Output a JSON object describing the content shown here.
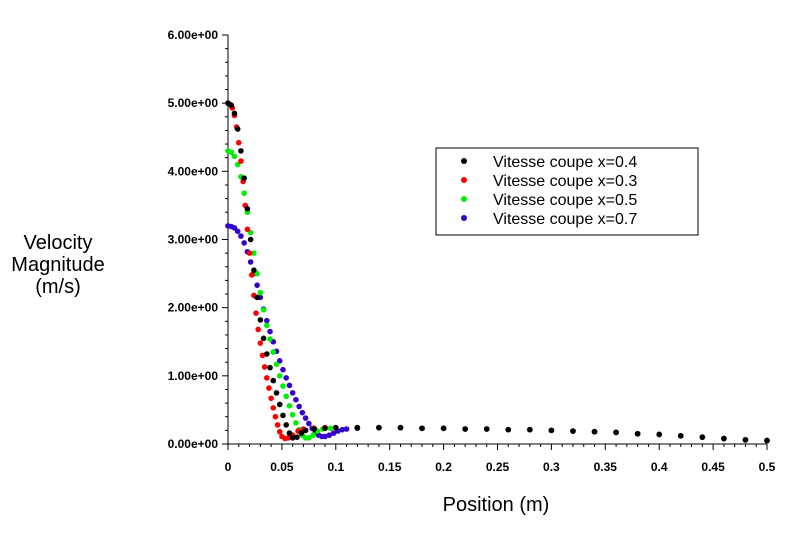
{
  "chart_data": {
    "type": "scatter",
    "title": "",
    "xlabel": "Position (m)",
    "ylabel": [
      "Velocity",
      "Magnitude",
      "(m/s)"
    ],
    "xlim": [
      0,
      0.5
    ],
    "ylim": [
      0,
      6
    ],
    "x_ticks": [
      "0",
      "0.05",
      "0.1",
      "0.15",
      "0.2",
      "0.25",
      "0.3",
      "0.35",
      "0.4",
      "0.45",
      "0.5"
    ],
    "y_ticks": [
      "0.00e+00",
      "1.00e+00",
      "2.00e+00",
      "3.00e+00",
      "4.00e+00",
      "5.00e+00",
      "6.00e+00"
    ],
    "grid": false,
    "legend_position": "right-center",
    "series": [
      {
        "name": "Vitesse coupe x=0.4",
        "color": "#000000",
        "points": [
          [
            0.0,
            5.0
          ],
          [
            0.003,
            4.97
          ],
          [
            0.006,
            4.85
          ],
          [
            0.009,
            4.62
          ],
          [
            0.012,
            4.3
          ],
          [
            0.015,
            3.9
          ],
          [
            0.018,
            3.45
          ],
          [
            0.021,
            3.0
          ],
          [
            0.024,
            2.55
          ],
          [
            0.027,
            2.15
          ],
          [
            0.03,
            1.82
          ],
          [
            0.033,
            1.55
          ],
          [
            0.036,
            1.32
          ],
          [
            0.039,
            1.12
          ],
          [
            0.042,
            0.93
          ],
          [
            0.045,
            0.75
          ],
          [
            0.048,
            0.58
          ],
          [
            0.051,
            0.42
          ],
          [
            0.054,
            0.28
          ],
          [
            0.057,
            0.16
          ],
          [
            0.06,
            0.09
          ],
          [
            0.064,
            0.1
          ],
          [
            0.068,
            0.16
          ],
          [
            0.072,
            0.2
          ],
          [
            0.08,
            0.22
          ],
          [
            0.09,
            0.23
          ],
          [
            0.1,
            0.24
          ],
          [
            0.12,
            0.24
          ],
          [
            0.14,
            0.24
          ],
          [
            0.16,
            0.24
          ],
          [
            0.18,
            0.23
          ],
          [
            0.2,
            0.23
          ],
          [
            0.22,
            0.22
          ],
          [
            0.24,
            0.22
          ],
          [
            0.26,
            0.21
          ],
          [
            0.28,
            0.21
          ],
          [
            0.3,
            0.2
          ],
          [
            0.32,
            0.19
          ],
          [
            0.34,
            0.18
          ],
          [
            0.36,
            0.17
          ],
          [
            0.38,
            0.15
          ],
          [
            0.4,
            0.14
          ],
          [
            0.42,
            0.12
          ],
          [
            0.44,
            0.1
          ],
          [
            0.46,
            0.08
          ],
          [
            0.48,
            0.06
          ],
          [
            0.5,
            0.05
          ]
        ]
      },
      {
        "name": "Vitesse coupe x=0.3",
        "color": "#ff0000",
        "points": [
          [
            0.0,
            5.0
          ],
          [
            0.002,
            4.98
          ],
          [
            0.004,
            4.93
          ],
          [
            0.006,
            4.82
          ],
          [
            0.008,
            4.65
          ],
          [
            0.01,
            4.42
          ],
          [
            0.012,
            4.15
          ],
          [
            0.014,
            3.85
          ],
          [
            0.016,
            3.5
          ],
          [
            0.018,
            3.15
          ],
          [
            0.02,
            2.8
          ],
          [
            0.022,
            2.48
          ],
          [
            0.024,
            2.18
          ],
          [
            0.026,
            1.92
          ],
          [
            0.028,
            1.68
          ],
          [
            0.03,
            1.48
          ],
          [
            0.032,
            1.3
          ],
          [
            0.034,
            1.13
          ],
          [
            0.036,
            0.97
          ],
          [
            0.038,
            0.82
          ],
          [
            0.04,
            0.67
          ],
          [
            0.042,
            0.53
          ],
          [
            0.044,
            0.4
          ],
          [
            0.046,
            0.28
          ],
          [
            0.048,
            0.18
          ],
          [
            0.05,
            0.11
          ],
          [
            0.053,
            0.08
          ],
          [
            0.056,
            0.09
          ],
          [
            0.06,
            0.13
          ],
          [
            0.065,
            0.19
          ],
          [
            0.07,
            0.22
          ],
          [
            0.08,
            0.23
          ],
          [
            0.09,
            0.24
          ],
          [
            0.1,
            0.24
          ],
          [
            0.12,
            0.24
          ],
          [
            0.14,
            0.24
          ],
          [
            0.16,
            0.24
          ],
          [
            0.18,
            0.23
          ],
          [
            0.2,
            0.23
          ],
          [
            0.22,
            0.22
          ],
          [
            0.24,
            0.22
          ],
          [
            0.26,
            0.21
          ],
          [
            0.28,
            0.21
          ],
          [
            0.3,
            0.2
          ],
          [
            0.32,
            0.19
          ],
          [
            0.34,
            0.18
          ],
          [
            0.36,
            0.17
          ],
          [
            0.38,
            0.15
          ],
          [
            0.4,
            0.14
          ],
          [
            0.42,
            0.12
          ],
          [
            0.44,
            0.1
          ],
          [
            0.46,
            0.08
          ],
          [
            0.48,
            0.06
          ],
          [
            0.5,
            0.05
          ]
        ]
      },
      {
        "name": "Vitesse coupe x=0.5",
        "color": "#00ee00",
        "points": [
          [
            0.0,
            4.3
          ],
          [
            0.003,
            4.28
          ],
          [
            0.006,
            4.22
          ],
          [
            0.009,
            4.1
          ],
          [
            0.012,
            3.92
          ],
          [
            0.015,
            3.68
          ],
          [
            0.018,
            3.4
          ],
          [
            0.021,
            3.1
          ],
          [
            0.024,
            2.8
          ],
          [
            0.027,
            2.5
          ],
          [
            0.03,
            2.22
          ],
          [
            0.033,
            1.97
          ],
          [
            0.036,
            1.74
          ],
          [
            0.039,
            1.54
          ],
          [
            0.042,
            1.35
          ],
          [
            0.045,
            1.17
          ],
          [
            0.048,
            1.0
          ],
          [
            0.051,
            0.85
          ],
          [
            0.054,
            0.7
          ],
          [
            0.057,
            0.56
          ],
          [
            0.06,
            0.43
          ],
          [
            0.063,
            0.31
          ],
          [
            0.066,
            0.21
          ],
          [
            0.069,
            0.13
          ],
          [
            0.072,
            0.09
          ],
          [
            0.075,
            0.09
          ],
          [
            0.079,
            0.13
          ],
          [
            0.083,
            0.19
          ],
          [
            0.088,
            0.22
          ],
          [
            0.095,
            0.23
          ],
          [
            0.1,
            0.24
          ],
          [
            0.12,
            0.24
          ],
          [
            0.14,
            0.24
          ],
          [
            0.16,
            0.24
          ],
          [
            0.18,
            0.23
          ],
          [
            0.2,
            0.23
          ],
          [
            0.22,
            0.22
          ],
          [
            0.24,
            0.22
          ],
          [
            0.26,
            0.21
          ],
          [
            0.28,
            0.21
          ],
          [
            0.3,
            0.2
          ],
          [
            0.32,
            0.19
          ],
          [
            0.34,
            0.18
          ],
          [
            0.36,
            0.17
          ],
          [
            0.38,
            0.15
          ],
          [
            0.4,
            0.14
          ],
          [
            0.42,
            0.12
          ],
          [
            0.44,
            0.1
          ],
          [
            0.46,
            0.08
          ],
          [
            0.48,
            0.06
          ],
          [
            0.5,
            0.05
          ]
        ]
      },
      {
        "name": "Vitesse coupe x=0.7",
        "color": "#3300cc",
        "points": [
          [
            0.0,
            3.2
          ],
          [
            0.003,
            3.19
          ],
          [
            0.006,
            3.17
          ],
          [
            0.009,
            3.12
          ],
          [
            0.012,
            3.05
          ],
          [
            0.015,
            2.95
          ],
          [
            0.018,
            2.82
          ],
          [
            0.021,
            2.67
          ],
          [
            0.024,
            2.5
          ],
          [
            0.027,
            2.33
          ],
          [
            0.03,
            2.15
          ],
          [
            0.033,
            1.98
          ],
          [
            0.036,
            1.81
          ],
          [
            0.039,
            1.65
          ],
          [
            0.042,
            1.5
          ],
          [
            0.045,
            1.36
          ],
          [
            0.048,
            1.22
          ],
          [
            0.051,
            1.09
          ],
          [
            0.054,
            0.97
          ],
          [
            0.057,
            0.86
          ],
          [
            0.06,
            0.75
          ],
          [
            0.063,
            0.65
          ],
          [
            0.066,
            0.55
          ],
          [
            0.069,
            0.46
          ],
          [
            0.072,
            0.38
          ],
          [
            0.075,
            0.3
          ],
          [
            0.078,
            0.23
          ],
          [
            0.081,
            0.17
          ],
          [
            0.084,
            0.13
          ],
          [
            0.087,
            0.11
          ],
          [
            0.09,
            0.11
          ],
          [
            0.094,
            0.13
          ],
          [
            0.098,
            0.16
          ],
          [
            0.102,
            0.19
          ],
          [
            0.106,
            0.21
          ],
          [
            0.11,
            0.22
          ],
          [
            0.12,
            0.23
          ],
          [
            0.14,
            0.24
          ],
          [
            0.16,
            0.24
          ],
          [
            0.18,
            0.23
          ],
          [
            0.2,
            0.23
          ],
          [
            0.22,
            0.22
          ],
          [
            0.24,
            0.22
          ],
          [
            0.26,
            0.21
          ],
          [
            0.28,
            0.21
          ],
          [
            0.3,
            0.2
          ],
          [
            0.32,
            0.19
          ],
          [
            0.34,
            0.18
          ],
          [
            0.36,
            0.17
          ],
          [
            0.38,
            0.15
          ],
          [
            0.4,
            0.14
          ],
          [
            0.42,
            0.12
          ],
          [
            0.44,
            0.1
          ],
          [
            0.46,
            0.08
          ],
          [
            0.48,
            0.06
          ],
          [
            0.5,
            0.05
          ]
        ]
      }
    ]
  }
}
